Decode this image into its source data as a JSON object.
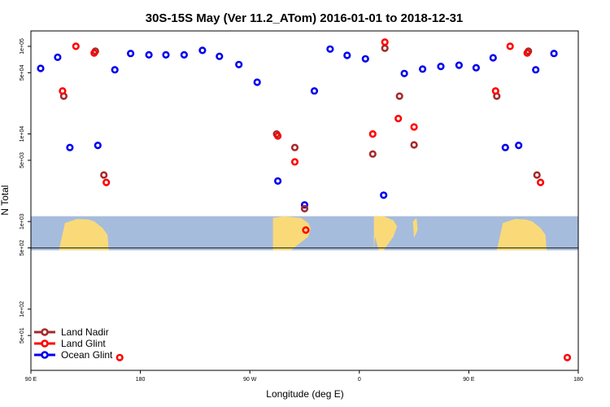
{
  "chart_data": {
    "type": "scatter",
    "title": "30S-15S May (Ver 11.2_ATom)   2016-01-01 to 2018-12-31",
    "xlabel": "Longitude (deg E)",
    "ylabel": "N Total",
    "x_axis": {
      "range_deg_east": [
        90,
        540
      ],
      "ticks": [
        {
          "value": 90,
          "label": "90 E"
        },
        {
          "value": 180,
          "label": "180"
        },
        {
          "value": 270,
          "label": "90 W"
        },
        {
          "value": 360,
          "label": "0"
        },
        {
          "value": 450,
          "label": "90 E"
        },
        {
          "value": 540,
          "label": "180"
        }
      ]
    },
    "y_axis": {
      "scale": "log",
      "range": [
        20,
        150000
      ],
      "ticks": [
        {
          "value": 50,
          "label": "5e+01"
        },
        {
          "value": 100,
          "label": "1e+02"
        },
        {
          "value": 500,
          "label": "5e+02"
        },
        {
          "value": 1000,
          "label": "1e+03"
        },
        {
          "value": 5000,
          "label": "5e+03"
        },
        {
          "value": 10000,
          "label": "1e+04"
        },
        {
          "value": 50000,
          "label": "5e+04"
        },
        {
          "value": 100000,
          "label": "1e+05"
        }
      ]
    },
    "map_band": {
      "y_range": [
        470,
        1150
      ],
      "ocean_color": "#a6bcdc",
      "land_color": "#fada78",
      "baseline_value": 500
    },
    "colors": {
      "land_nadir": "#a52a2a",
      "land_glint": "#ff0000",
      "ocean_glint": "#0000ee"
    },
    "legend": {
      "position": "bottom-left",
      "entries": [
        {
          "label": "Land Nadir",
          "key": "land_nadir"
        },
        {
          "label": "Land Glint",
          "key": "land_glint"
        },
        {
          "label": "Ocean Glint",
          "key": "ocean_glint"
        }
      ]
    },
    "series": [
      {
        "name": "Ocean Glint",
        "key": "ocean_glint",
        "points": [
          [
            98,
            56000
          ],
          [
            112,
            75000
          ],
          [
            122,
            7000
          ],
          [
            145,
            7400
          ],
          [
            159,
            54000
          ],
          [
            172,
            83000
          ],
          [
            187,
            80000
          ],
          [
            201,
            80000
          ],
          [
            216,
            80000
          ],
          [
            231,
            90000
          ],
          [
            245,
            77000
          ],
          [
            261,
            62000
          ],
          [
            276,
            39000
          ],
          [
            293,
            2900
          ],
          [
            315,
            1550
          ],
          [
            323,
            31000
          ],
          [
            336,
            93000
          ],
          [
            350,
            79000
          ],
          [
            365,
            72000
          ],
          [
            380,
            2000
          ],
          [
            397,
            49000
          ],
          [
            412,
            55000
          ],
          [
            427,
            59000
          ],
          [
            442,
            61000
          ],
          [
            456,
            57000
          ],
          [
            470,
            74000
          ],
          [
            480,
            7000
          ],
          [
            491,
            7400
          ],
          [
            505,
            54000
          ],
          [
            520,
            83000
          ]
        ]
      },
      {
        "name": "Land Nadir",
        "key": "land_nadir",
        "points": [
          [
            117,
            27000
          ],
          [
            143,
            88000
          ],
          [
            150,
            3400
          ],
          [
            292,
            10000
          ],
          [
            307,
            7000
          ],
          [
            315,
            1400
          ],
          [
            371,
            5900
          ],
          [
            381,
            95000
          ],
          [
            393,
            27000
          ],
          [
            405,
            7500
          ],
          [
            473,
            27000
          ],
          [
            499,
            88000
          ],
          [
            506,
            3400
          ]
        ]
      },
      {
        "name": "Land Glint",
        "key": "land_glint",
        "points": [
          [
            116,
            31000
          ],
          [
            127,
            100000
          ],
          [
            142,
            84000
          ],
          [
            152,
            2800
          ],
          [
            163,
            28
          ],
          [
            293,
            9500
          ],
          [
            307,
            4800
          ],
          [
            316,
            800
          ],
          [
            371,
            10000
          ],
          [
            381,
            112000
          ],
          [
            392,
            15000
          ],
          [
            405,
            12000
          ],
          [
            472,
            31000
          ],
          [
            484,
            100000
          ],
          [
            498,
            84000
          ],
          [
            509,
            2800
          ],
          [
            531,
            28
          ]
        ]
      }
    ]
  }
}
